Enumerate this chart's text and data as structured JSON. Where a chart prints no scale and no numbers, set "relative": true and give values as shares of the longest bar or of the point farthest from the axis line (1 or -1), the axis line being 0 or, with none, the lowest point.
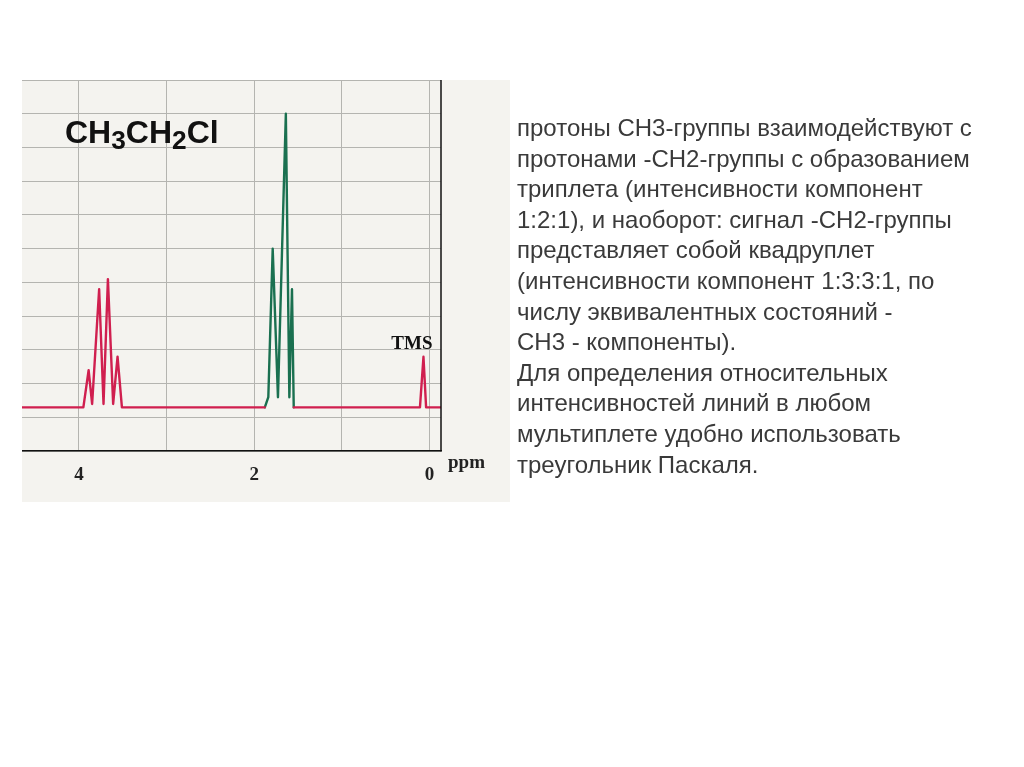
{
  "chart_data": {
    "type": "line",
    "title": "CH$_{3}$CH$_{2}$Cl",
    "xlabel": "ppm",
    "relative": true,
    "xlim": [
      4.65,
      -0.13
    ],
    "xticks": [
      4,
      {
        "value": 3,
        "label": null
      },
      2,
      {
        "value": 1,
        "label": null
      },
      0
    ],
    "grid": true,
    "marker": "none",
    "line_style": "solid",
    "series": [
      {
        "color": "#d01f4f",
        "x": [
          4.65,
          4.3,
          3.95,
          3.89,
          3.85,
          3.77,
          3.72,
          3.67,
          3.61,
          3.56,
          3.51,
          3.2,
          2.8,
          2.4,
          2.0,
          1.88,
          1.7,
          1.55,
          1.2,
          0.8,
          0.4,
          0.11,
          0.07,
          0.04,
          -0.13
        ],
        "values": [
          0.13,
          0.13,
          0.13,
          0.24,
          0.14,
          0.48,
          0.14,
          0.51,
          0.14,
          0.28,
          0.13,
          0.13,
          0.13,
          0.13,
          0.13,
          0.13,
          null,
          0.13,
          0.13,
          0.13,
          0.13,
          0.13,
          0.28,
          0.13,
          0.13
        ]
      },
      {
        "color": "#1a7050",
        "x": [
          1.88,
          1.84,
          1.79,
          1.73,
          1.64,
          1.6,
          1.57,
          1.55
        ],
        "values": [
          0.13,
          0.16,
          0.6,
          0.16,
          1,
          0.16,
          0.48,
          0.13
        ]
      }
    ],
    "annotations": [
      {
        "text": "TMS",
        "x": 0.07,
        "y": 0.28
      },
      "протоны CH3-группы взаимодействуют с\nпротонами -CH2-группы с образованием\nтриплета (интенсивности компонент\n1:2:1), и наоборот: сигнал -CH2-группы\nпредставляет собой квадруплет\n(интенсивности компонент 1:3:3:1, по\nчислу эквивалентных состояний -\nCH3 - компоненты).",
      "Для определения относительных\nинтенсивностей линий в любом\nмультиплете удобно использовать\nтреугольник Паскаля."
    ]
  }
}
